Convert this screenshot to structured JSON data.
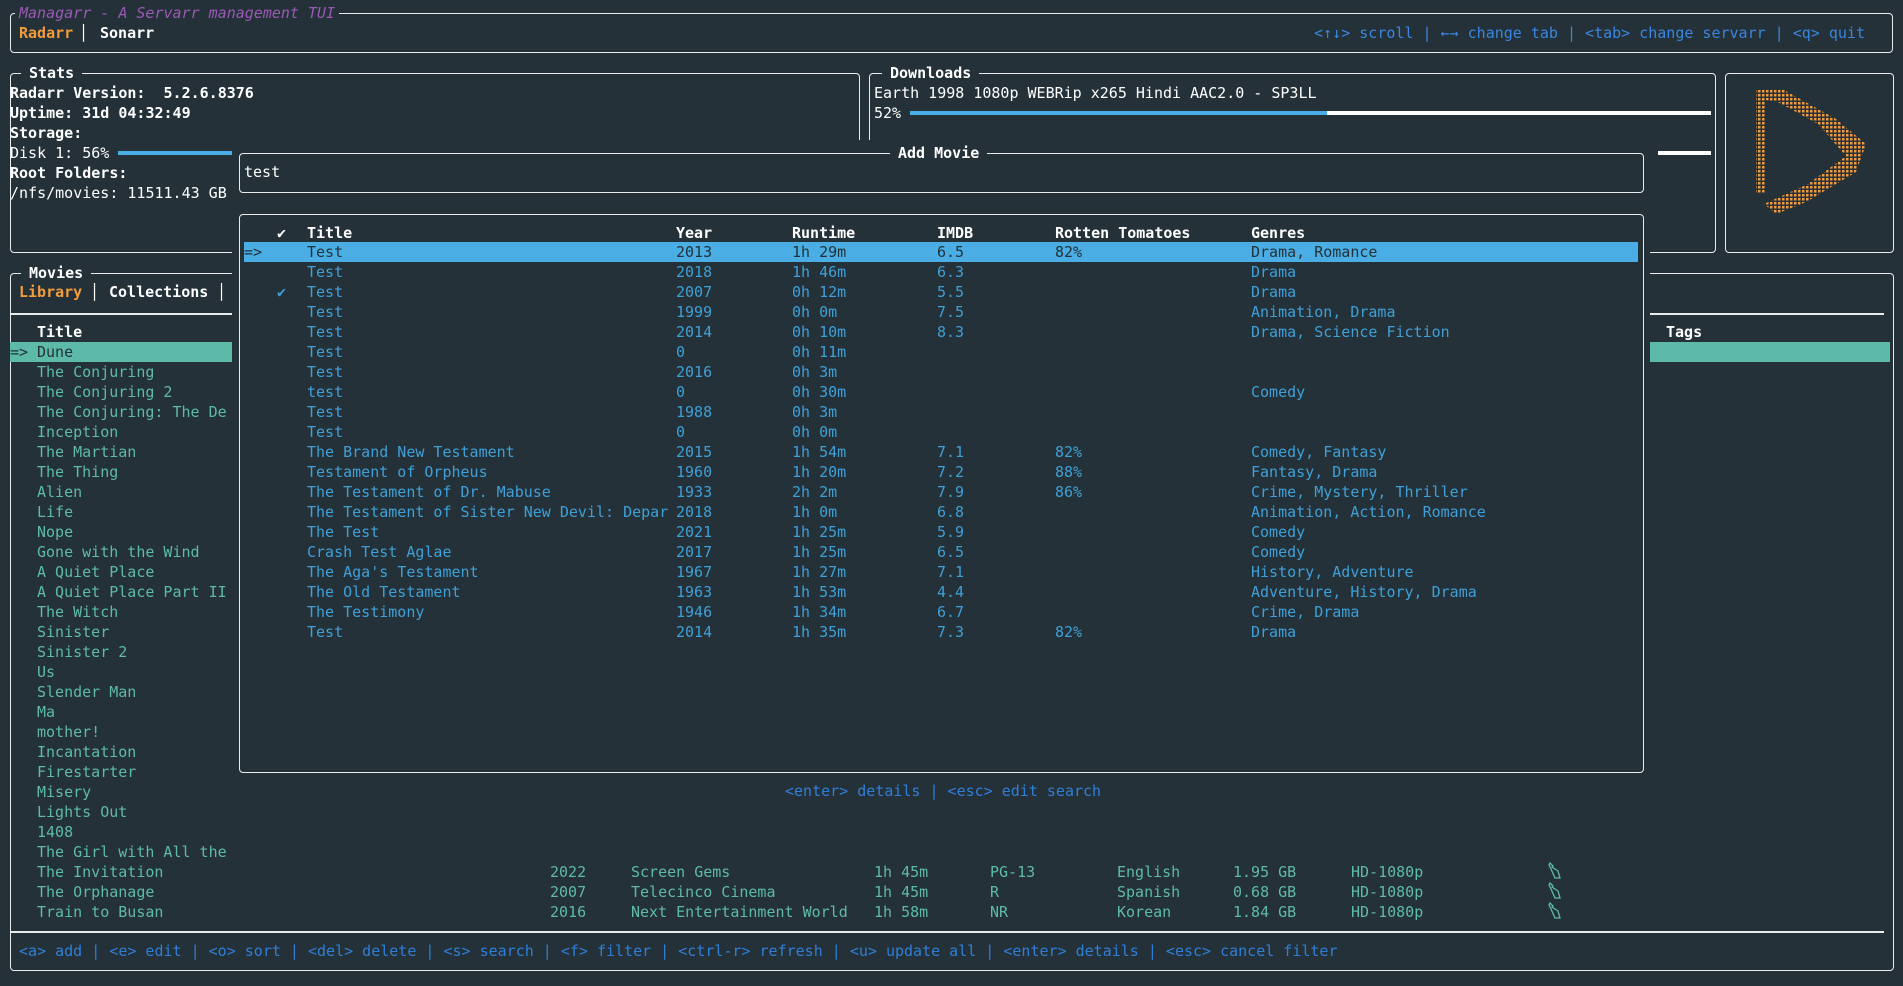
{
  "header": {
    "app_title": "Managarr - A Servarr management TUI",
    "tabs": [
      {
        "label": "Radarr",
        "active": true
      },
      {
        "label": "Sonarr",
        "active": false
      }
    ],
    "help": "<↑↓> scroll | ←→ change tab | <tab> change servarr | <q> quit"
  },
  "stats": {
    "title": "Stats",
    "version_label": "Radarr Version:",
    "version": "5.2.6.8376",
    "uptime": "Uptime: 31d 04:32:49",
    "storage_label": "Storage:",
    "disk": "Disk 1: 56%",
    "disk_percent": 56,
    "root_label": "Root Folders:",
    "root": "/nfs/movies: 11511.43 GB"
  },
  "downloads": {
    "title": "Downloads",
    "items": [
      {
        "name": "Earth 1998 1080p WEBRip x265 Hindi AAC2.0 - SP3LL",
        "progress_label": "52%",
        "progress": 52
      }
    ]
  },
  "logo": {
    "icon": "radarr-logo",
    "color": "#f39c3c"
  },
  "movies": {
    "title": "Movies",
    "tabs": [
      {
        "label": "Library",
        "active": true
      },
      {
        "label": "Collections",
        "active": false
      }
    ],
    "columns": {
      "title": "Title",
      "tags": "Tags"
    },
    "selected_marker": "=>",
    "rows": [
      {
        "title": "Dune"
      },
      {
        "title": "The Conjuring"
      },
      {
        "title": "The Conjuring 2"
      },
      {
        "title": "The Conjuring: The De"
      },
      {
        "title": "Inception"
      },
      {
        "title": "The Martian"
      },
      {
        "title": "The Thing"
      },
      {
        "title": "Alien"
      },
      {
        "title": "Life"
      },
      {
        "title": "Nope"
      },
      {
        "title": "Gone with the Wind"
      },
      {
        "title": "A Quiet Place"
      },
      {
        "title": "A Quiet Place Part II"
      },
      {
        "title": "The Witch"
      },
      {
        "title": "Sinister"
      },
      {
        "title": "Sinister 2"
      },
      {
        "title": "Us"
      },
      {
        "title": "Slender Man"
      },
      {
        "title": "Ma"
      },
      {
        "title": "mother!"
      },
      {
        "title": "Incantation"
      },
      {
        "title": "Firestarter"
      },
      {
        "title": "Misery"
      },
      {
        "title": "Lights Out"
      },
      {
        "title": "1408"
      },
      {
        "title": "The Girl with All the"
      },
      {
        "title": "The Invitation",
        "year": "2022",
        "studio": "Screen Gems",
        "runtime": "1h 45m",
        "rating": "PG-13",
        "language": "English",
        "size": "1.95 GB",
        "quality": "HD-1080p",
        "icon": "tag-icon"
      },
      {
        "title": "The Orphanage",
        "year": "2007",
        "studio": "Telecinco Cinema",
        "runtime": "1h 45m",
        "rating": "R",
        "language": "Spanish",
        "size": "0.68 GB",
        "quality": "HD-1080p",
        "icon": "tag-icon"
      },
      {
        "title": "Train to Busan",
        "year": "2016",
        "studio": "Next Entertainment World",
        "runtime": "1h 58m",
        "rating": "NR",
        "language": "Korean",
        "size": "1.84 GB",
        "quality": "HD-1080p",
        "icon": "tag-icon"
      }
    ],
    "help": "<a> add | <e> edit | <o> sort | <del> delete | <s> search | <f> filter | <ctrl-r> refresh | <u> update all | <enter> details | <esc> cancel filter"
  },
  "add_movie": {
    "title": "Add Movie",
    "search_value": "test",
    "columns": {
      "check": "✔",
      "title": "Title",
      "year": "Year",
      "runtime": "Runtime",
      "imdb": "IMDB",
      "rt": "Rotten Tomatoes",
      "genres": "Genres"
    },
    "selected_marker": "=>",
    "results": [
      {
        "check": "",
        "title": "Test",
        "year": "2013",
        "runtime": "1h 29m",
        "imdb": "6.5",
        "rt": "82%",
        "genres": "Drama, Romance"
      },
      {
        "check": "",
        "title": "Test",
        "year": "2018",
        "runtime": "1h 46m",
        "imdb": "6.3",
        "rt": "",
        "genres": "Drama"
      },
      {
        "check": "✔",
        "title": "Test",
        "year": "2007",
        "runtime": "0h 12m",
        "imdb": "5.5",
        "rt": "",
        "genres": "Drama"
      },
      {
        "check": "",
        "title": "Test",
        "year": "1999",
        "runtime": "0h 0m",
        "imdb": "7.5",
        "rt": "",
        "genres": "Animation, Drama"
      },
      {
        "check": "",
        "title": "Test",
        "year": "2014",
        "runtime": "0h 10m",
        "imdb": "8.3",
        "rt": "",
        "genres": "Drama, Science Fiction"
      },
      {
        "check": "",
        "title": "Test",
        "year": "0",
        "runtime": "0h 11m",
        "imdb": "",
        "rt": "",
        "genres": ""
      },
      {
        "check": "",
        "title": "Test",
        "year": "2016",
        "runtime": "0h 3m",
        "imdb": "",
        "rt": "",
        "genres": ""
      },
      {
        "check": "",
        "title": "test",
        "year": "0",
        "runtime": "0h 30m",
        "imdb": "",
        "rt": "",
        "genres": "Comedy"
      },
      {
        "check": "",
        "title": "Test",
        "year": "1988",
        "runtime": "0h 3m",
        "imdb": "",
        "rt": "",
        "genres": ""
      },
      {
        "check": "",
        "title": "Test",
        "year": "0",
        "runtime": "0h 0m",
        "imdb": "",
        "rt": "",
        "genres": ""
      },
      {
        "check": "",
        "title": "The Brand New Testament",
        "year": "2015",
        "runtime": "1h 54m",
        "imdb": "7.1",
        "rt": "82%",
        "genres": "Comedy, Fantasy"
      },
      {
        "check": "",
        "title": "Testament of Orpheus",
        "year": "1960",
        "runtime": "1h 20m",
        "imdb": "7.2",
        "rt": "88%",
        "genres": "Fantasy, Drama"
      },
      {
        "check": "",
        "title": "The Testament of Dr. Mabuse",
        "year": "1933",
        "runtime": "2h 2m",
        "imdb": "7.9",
        "rt": "86%",
        "genres": "Crime, Mystery, Thriller"
      },
      {
        "check": "",
        "title": "The Testament of Sister New Devil: Depar",
        "year": "2018",
        "runtime": "1h 0m",
        "imdb": "6.8",
        "rt": "",
        "genres": "Animation, Action, Romance"
      },
      {
        "check": "",
        "title": "The Test",
        "year": "2021",
        "runtime": "1h 25m",
        "imdb": "5.9",
        "rt": "",
        "genres": "Comedy"
      },
      {
        "check": "",
        "title": "Crash Test Aglae",
        "year": "2017",
        "runtime": "1h 25m",
        "imdb": "6.5",
        "rt": "",
        "genres": "Comedy"
      },
      {
        "check": "",
        "title": "The Aga's Testament",
        "year": "1967",
        "runtime": "1h 27m",
        "imdb": "7.1",
        "rt": "",
        "genres": "History, Adventure"
      },
      {
        "check": "",
        "title": "The Old Testament",
        "year": "1963",
        "runtime": "1h 53m",
        "imdb": "4.4",
        "rt": "",
        "genres": "Adventure, History, Drama"
      },
      {
        "check": "",
        "title": "The Testimony",
        "year": "1946",
        "runtime": "1h 34m",
        "imdb": "6.7",
        "rt": "",
        "genres": "Crime, Drama"
      },
      {
        "check": "",
        "title": "Test",
        "year": "2014",
        "runtime": "1h 35m",
        "imdb": "7.3",
        "rt": "82%",
        "genres": "Drama"
      }
    ],
    "help": "<enter> details | <esc> edit search"
  },
  "colors": {
    "background": "#243138",
    "accent_orange": "#f39c3c",
    "title_purple": "#9b59b6",
    "selection_blue": "#4aaee4",
    "library_teal": "#5ebba8",
    "help_blue": "#2f7fd8"
  }
}
